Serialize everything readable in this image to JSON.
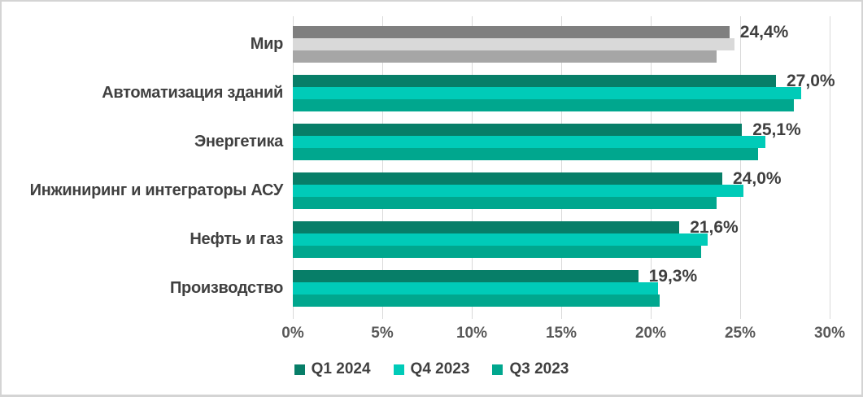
{
  "chart_data": {
    "type": "bar",
    "orientation": "horizontal",
    "title": "",
    "xlabel": "",
    "ylabel": "",
    "xlim": [
      0,
      30
    ],
    "grid": true,
    "legend_position": "bottom",
    "x_ticks": [
      "0%",
      "5%",
      "10%",
      "15%",
      "20%",
      "25%",
      "30%"
    ],
    "x_tick_values": [
      0,
      5,
      10,
      15,
      20,
      25,
      30
    ],
    "categories": [
      "Мир",
      "Автоматизация зданий",
      "Энергетика",
      "Инжиниринг и интеграторы АСУ",
      "Нефть и газ",
      "Производство"
    ],
    "series": [
      {
        "name": "Q1 2024",
        "color": "#077e68",
        "world_color": "#7f7f7f",
        "values": [
          24.4,
          27.0,
          25.1,
          24.0,
          21.6,
          19.3
        ]
      },
      {
        "name": "Q4 2023",
        "color": "#00cbb8",
        "world_color": "#d9d9d9",
        "values": [
          24.7,
          28.4,
          26.4,
          25.2,
          23.2,
          20.4
        ]
      },
      {
        "name": "Q3 2023",
        "color": "#00a78e",
        "world_color": "#a6a6a6",
        "values": [
          23.7,
          28.0,
          26.0,
          23.7,
          22.8,
          20.5
        ]
      }
    ],
    "data_labels": [
      "24,4%",
      "27,0%",
      "25,1%",
      "24,0%",
      "21,6%",
      "19,3%"
    ],
    "data_label_series": "Q1 2024"
  },
  "colors": {
    "gridline": "#d9d9d9",
    "category_text": "#404040",
    "tick_text": "#595959",
    "data_label_text": "#3f3f3f",
    "frame_border": "#d4d4d4"
  }
}
